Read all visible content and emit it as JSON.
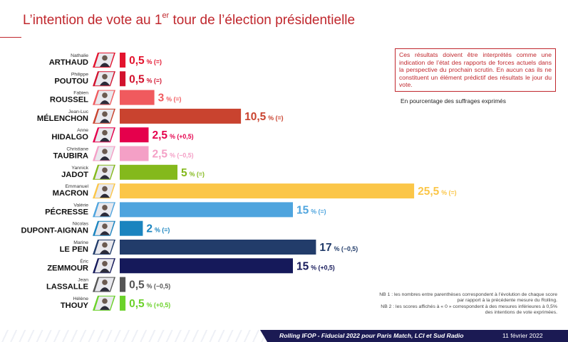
{
  "title": {
    "main": "L’intention de vote au 1",
    "sup": "er",
    "rest": " tour de l’élection présidentielle"
  },
  "disclaimer": "Ces résultats doivent être interprétés comme une indication de l’état des rapports de forces actuels dans la perspective du prochain scrutin. En aucun cas ils ne constituent un élément prédictif des résultats le jour du vote.",
  "unit_note": "En pourcentage des suffrages exprimés",
  "nb1": "NB 1 : les nombres entre parenthèses correspondent à l’évolution de chaque score par rapport à la précédente mesure du Rolling.",
  "nb2": "NB 2 : les scores affichés à « 0 » correspondent à des mesures inférieures à 0,5% des intentions de vote exprimées.",
  "footer": {
    "text": "Rolling IFOP - Fiducial 2022 pour Paris Match, LCI et Sud Radio",
    "date": "11 février 2022"
  },
  "chart_data": {
    "type": "bar",
    "orientation": "horizontal",
    "unit": "%",
    "categories": [
      "ARTHAUD",
      "POUTOU",
      "ROUSSEL",
      "MÉLENCHON",
      "HIDALGO",
      "TAUBIRA",
      "JADOT",
      "MACRON",
      "PÉCRESSE",
      "DUPONT-AIGNAN",
      "LE PEN",
      "ZEMMOUR",
      "LASSALLE",
      "THOUY"
    ],
    "first_names": [
      "Nathalie",
      "Philippe",
      "Fabien",
      "Jean-Luc",
      "Anne",
      "Christiane",
      "Yannick",
      "Emmanuel",
      "Valérie",
      "Nicolas",
      "Marine",
      "Éric",
      "Jean",
      "Hélène"
    ],
    "values": [
      0.5,
      0.5,
      3,
      10.5,
      2.5,
      2.5,
      5,
      25.5,
      15,
      2,
      17,
      15,
      0.5,
      0.5
    ],
    "value_labels": [
      "0,5",
      "0,5",
      "3",
      "10,5",
      "2,5",
      "2,5",
      "5",
      "25,5",
      "15",
      "2",
      "17",
      "15",
      "0,5",
      "0,5"
    ],
    "changes": [
      "(=)",
      "(=)",
      "(=)",
      "(=)",
      "(+0,5)",
      "(−0,5)",
      "(=)",
      "(=)",
      "(=)",
      "(=)",
      "(−0,5)",
      "(+0,5)",
      "(−0,5)",
      "(+0,5)"
    ],
    "colors": [
      "#e3142e",
      "#d2122e",
      "#f05a5e",
      "#c9432f",
      "#e5004c",
      "#f4a0c6",
      "#84b91c",
      "#fbc648",
      "#4ea4de",
      "#1a84bf",
      "#223c6a",
      "#15195a",
      "#555555",
      "#6bd22a"
    ],
    "label_colors": [
      "#e3142e",
      "#d2122e",
      "#f05a5e",
      "#c9432f",
      "#e5004c",
      "#f4a0c6",
      "#84b91c",
      "#fbc648",
      "#4ea4de",
      "#1a84bf",
      "#223c6a",
      "#15195a",
      "#555555",
      "#6bd22a"
    ]
  }
}
